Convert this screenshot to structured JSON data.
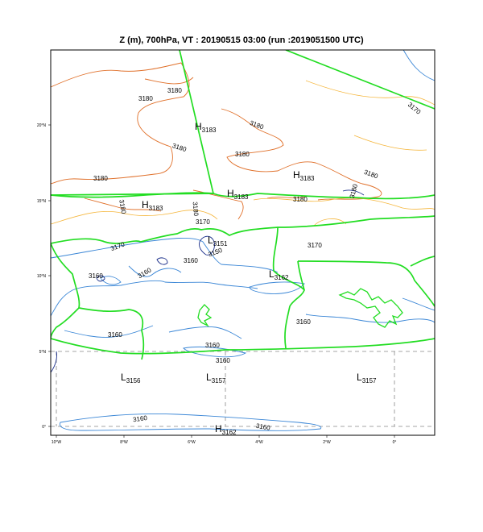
{
  "title": "Z (m), 700hPa, VT : 20190515  03:00 (run :2019051500 UTC)",
  "lat_ticks": [
    "20°N",
    "15°N",
    "10°N",
    "5°N",
    "0°"
  ],
  "lon_ticks": [
    "10°W",
    "8°W",
    "6°W",
    "4°W",
    "2°W",
    "0°"
  ],
  "centers": [
    {
      "letter": "H",
      "value": "3183"
    },
    {
      "letter": "H",
      "value": "3183"
    },
    {
      "letter": "H",
      "value": "3183"
    },
    {
      "letter": "H",
      "value": "3183"
    },
    {
      "letter": "L",
      "value": "3151"
    },
    {
      "letter": "L",
      "value": "3162"
    },
    {
      "letter": "L",
      "value": "3156"
    },
    {
      "letter": "L",
      "value": "3157"
    },
    {
      "letter": "L",
      "value": "3157"
    },
    {
      "letter": "H",
      "value": "3162"
    }
  ],
  "contour_labels": [
    "3180",
    "3180",
    "3180",
    "3180",
    "3180",
    "3180",
    "3180",
    "3180",
    "3180",
    "3180",
    "3180",
    "3170",
    "3170",
    "3170",
    "3170",
    "3160",
    "3160",
    "3160",
    "3160",
    "3160",
    "3160",
    "3160",
    "3150",
    "3160",
    "3160"
  ],
  "colors": {
    "frame": "#000000",
    "border": "#22dd22",
    "c3180": "#e0702a",
    "c3170": "#f5b63c",
    "c3160": "#3a86d6",
    "c3150": "#1b2f8a",
    "grid": "#888888"
  }
}
